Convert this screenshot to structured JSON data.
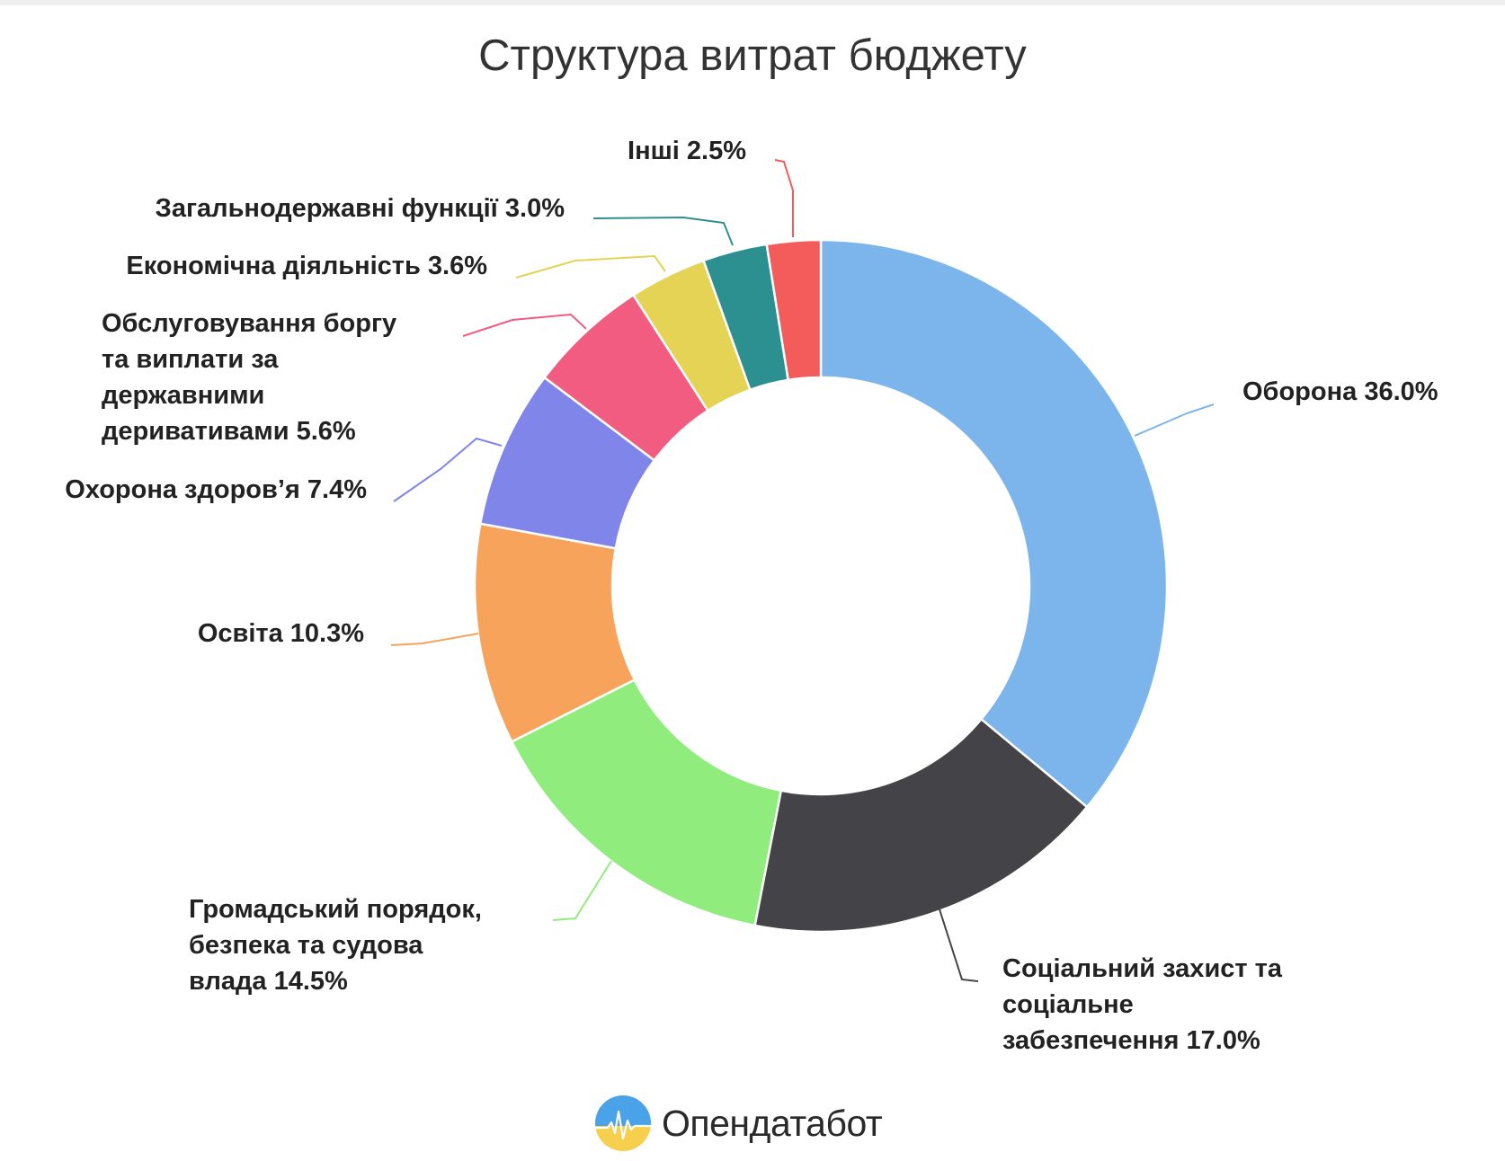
{
  "title": "Структура витрат бюджету",
  "brand": {
    "name": "Опендатабот",
    "logo_icon": "opendatabot-logo-icon"
  },
  "chart_data": {
    "type": "pie",
    "variant": "donut",
    "title": "Структура витрат бюджету",
    "unit": "%",
    "slices": [
      {
        "name": "Оборона",
        "value": 36.0,
        "color": "#7cb5ec",
        "label_lines": [
          "Оборона 36.0%"
        ]
      },
      {
        "name": "Соціальний захист та соціальне забезпечення",
        "value": 17.0,
        "color": "#434348",
        "label_lines": [
          "Соціальний захист та",
          "соціальне",
          "забезпечення 17.0%"
        ]
      },
      {
        "name": "Громадський порядок, безпека та судова влада",
        "value": 14.5,
        "color": "#90ed7d",
        "label_lines": [
          "Громадський порядок,",
          "безпека та судова",
          "влада 14.5%"
        ]
      },
      {
        "name": "Освіта",
        "value": 10.3,
        "color": "#f7a35c",
        "label_lines": [
          "Освіта 10.3%"
        ]
      },
      {
        "name": "Охорона здоров’я",
        "value": 7.4,
        "color": "#8085e9",
        "label_lines": [
          "Охорона здоров’я 7.4%"
        ]
      },
      {
        "name": "Обслуговування боргу та виплати за державними деривативами",
        "value": 5.6,
        "color": "#f15c80",
        "label_lines": [
          "Обслуговування боргу",
          "та виплати за",
          "державними",
          "деривативами 5.6%"
        ]
      },
      {
        "name": "Економічна діяльність",
        "value": 3.6,
        "color": "#e4d354",
        "label_lines": [
          "Економічна діяльність 3.6%"
        ]
      },
      {
        "name": "Загальнодержавні функції",
        "value": 3.0,
        "color": "#2b908f",
        "label_lines": [
          "Загальнодержавні функції 3.0%"
        ]
      },
      {
        "name": "Інші",
        "value": 2.5,
        "color": "#f45b5b",
        "label_lines": [
          "Інші 2.5%"
        ]
      }
    ]
  }
}
